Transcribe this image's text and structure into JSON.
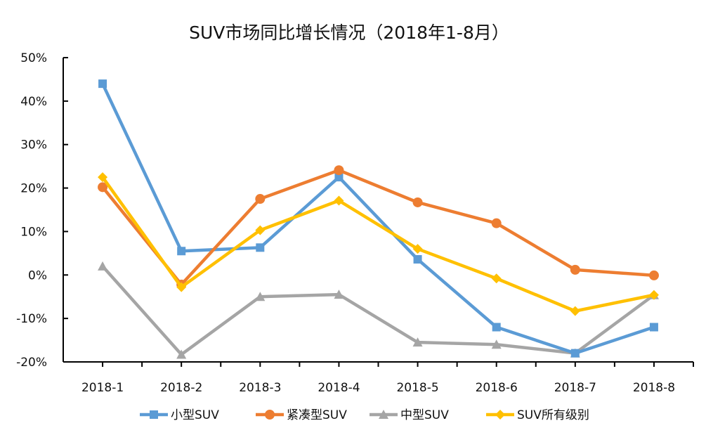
{
  "chart_data": {
    "type": "line",
    "title": "SUV市场同比增长情况（2018年1-8月）",
    "xlabel": "",
    "ylabel": "",
    "categories": [
      "2018-1",
      "2018-2",
      "2018-3",
      "2018-4",
      "2018-5",
      "2018-6",
      "2018-7",
      "2018-8"
    ],
    "ylim": [
      -20,
      50
    ],
    "yticks": [
      50,
      40,
      30,
      20,
      10,
      0,
      -10,
      -20
    ],
    "ytick_labels": [
      "50%",
      "40%",
      "30%",
      "20%",
      "10%",
      "0%",
      "-10%",
      "-20%"
    ],
    "grid": false,
    "legend_position": "bottom",
    "series": [
      {
        "name": "小型SUV",
        "color": "#5B9BD5",
        "marker": "square",
        "values": [
          44.0,
          5.5,
          6.3,
          22.5,
          3.6,
          -12.0,
          -18.0,
          -12.0
        ]
      },
      {
        "name": "紧凑型SUV",
        "color": "#ED7D31",
        "marker": "circle",
        "values": [
          20.2,
          -2.2,
          17.5,
          24.1,
          16.7,
          11.9,
          1.2,
          -0.1
        ]
      },
      {
        "name": "中型SUV",
        "color": "#A5A5A5",
        "marker": "triangle",
        "values": [
          2.0,
          -18.3,
          -5.0,
          -4.5,
          -15.5,
          -16.0,
          -18.0,
          -4.6
        ]
      },
      {
        "name": "SUV所有级别",
        "color": "#FFC000",
        "marker": "diamond",
        "values": [
          22.5,
          -2.8,
          10.3,
          17.1,
          6.0,
          -0.8,
          -8.3,
          -4.6
        ]
      }
    ]
  }
}
